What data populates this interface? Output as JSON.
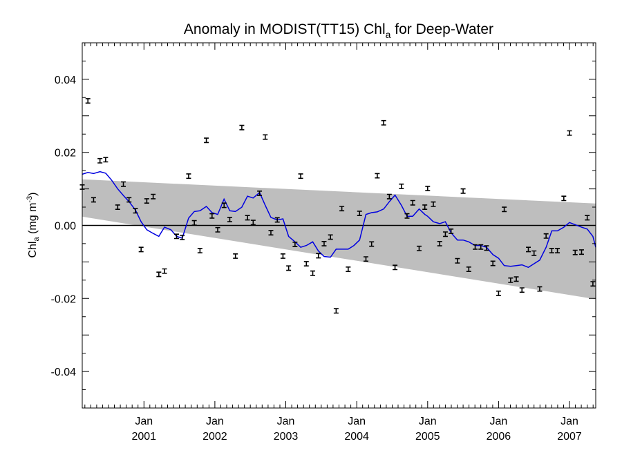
{
  "chart_data": {
    "type": "scatter",
    "title": {
      "main": "Anomaly in MODIST(TT15) Chl",
      "sub": "a",
      "tail": " for Deep-Water"
    },
    "ylabel": {
      "main": "Chl",
      "sub": "a",
      "mid": " (mg m",
      "sup": "-3",
      "tail": ")"
    },
    "ylim": [
      -0.05,
      0.05
    ],
    "xlim": [
      2000.13,
      2007.37
    ],
    "yticks": [
      {
        "value": 0.04,
        "label": "0.04"
      },
      {
        "value": 0.02,
        "label": "0.02"
      },
      {
        "value": 0.0,
        "label": "0.00"
      },
      {
        "value": -0.02,
        "label": "-0.02"
      },
      {
        "value": -0.04,
        "label": "-0.04"
      }
    ],
    "xticks": [
      {
        "value": 2001.0,
        "month": "Jan",
        "year": "2001"
      },
      {
        "value": 2002.0,
        "month": "Jan",
        "year": "2002"
      },
      {
        "value": 2003.0,
        "month": "Jan",
        "year": "2003"
      },
      {
        "value": 2004.0,
        "month": "Jan",
        "year": "2004"
      },
      {
        "value": 2005.0,
        "month": "Jan",
        "year": "2005"
      },
      {
        "value": 2006.0,
        "month": "Jan",
        "year": "2006"
      },
      {
        "value": 2007.0,
        "month": "Jan",
        "year": "2007"
      }
    ],
    "confidence_band": {
      "color": "#bebebe",
      "upper": [
        [
          2000.13,
          0.0126
        ],
        [
          2007.37,
          0.006
        ]
      ],
      "lower": [
        [
          2000.13,
          0.0024
        ],
        [
          2007.37,
          -0.0202
        ]
      ]
    },
    "zero_line": 0.0,
    "series": [
      {
        "kind": "points_with_errorbars",
        "color": "#000000",
        "error": 0.0006,
        "points": [
          [
            2000.13,
            0.0105
          ],
          [
            2000.21,
            0.0341
          ],
          [
            2000.29,
            0.007
          ],
          [
            2000.38,
            0.0177
          ],
          [
            2000.46,
            0.018
          ],
          [
            2000.63,
            0.005
          ],
          [
            2000.71,
            0.0113
          ],
          [
            2000.79,
            0.007
          ],
          [
            2000.88,
            0.004
          ],
          [
            2000.96,
            -0.0066
          ],
          [
            2001.04,
            0.0067
          ],
          [
            2001.13,
            0.0079
          ],
          [
            2001.21,
            -0.0134
          ],
          [
            2001.29,
            -0.0125
          ],
          [
            2001.46,
            -0.003
          ],
          [
            2001.54,
            -0.0033
          ],
          [
            2001.63,
            0.0135
          ],
          [
            2001.71,
            0.0007
          ],
          [
            2001.79,
            -0.0069
          ],
          [
            2001.88,
            0.0233
          ],
          [
            2001.96,
            0.0026
          ],
          [
            2002.04,
            -0.0012
          ],
          [
            2002.13,
            0.0055
          ],
          [
            2002.21,
            0.0016
          ],
          [
            2002.29,
            -0.0084
          ],
          [
            2002.38,
            0.0268
          ],
          [
            2002.46,
            0.0021
          ],
          [
            2002.54,
            0.0008
          ],
          [
            2002.63,
            0.0088
          ],
          [
            2002.71,
            0.0242
          ],
          [
            2002.79,
            -0.002
          ],
          [
            2002.88,
            0.0015
          ],
          [
            2002.96,
            -0.0084
          ],
          [
            2003.04,
            -0.0117
          ],
          [
            2003.13,
            -0.0052
          ],
          [
            2003.21,
            0.0135
          ],
          [
            2003.29,
            -0.0105
          ],
          [
            2003.38,
            -0.0131
          ],
          [
            2003.46,
            -0.0083
          ],
          [
            2003.54,
            -0.005
          ],
          [
            2003.63,
            -0.0032
          ],
          [
            2003.71,
            -0.0234
          ],
          [
            2003.79,
            0.0046
          ],
          [
            2003.88,
            -0.012
          ],
          [
            2004.04,
            0.0033
          ],
          [
            2004.13,
            -0.0092
          ],
          [
            2004.21,
            -0.0051
          ],
          [
            2004.29,
            0.0136
          ],
          [
            2004.38,
            0.0281
          ],
          [
            2004.46,
            0.0079
          ],
          [
            2004.54,
            -0.0115
          ],
          [
            2004.63,
            0.0107
          ],
          [
            2004.71,
            0.0026
          ],
          [
            2004.79,
            0.0062
          ],
          [
            2004.88,
            -0.0063
          ],
          [
            2004.96,
            0.005
          ],
          [
            2005.0,
            0.0101
          ],
          [
            2005.08,
            0.0058
          ],
          [
            2005.17,
            -0.005
          ],
          [
            2005.25,
            -0.0024
          ],
          [
            2005.33,
            -0.0016
          ],
          [
            2005.42,
            -0.0097
          ],
          [
            2005.5,
            0.0094
          ],
          [
            2005.58,
            -0.012
          ],
          [
            2005.67,
            -0.0059
          ],
          [
            2005.75,
            -0.0059
          ],
          [
            2005.83,
            -0.0062
          ],
          [
            2005.92,
            -0.0104
          ],
          [
            2006.0,
            -0.0186
          ],
          [
            2006.08,
            0.0044
          ],
          [
            2006.17,
            -0.015
          ],
          [
            2006.25,
            -0.0147
          ],
          [
            2006.33,
            -0.0177
          ],
          [
            2006.42,
            -0.0066
          ],
          [
            2006.5,
            -0.0076
          ],
          [
            2006.58,
            -0.0174
          ],
          [
            2006.67,
            -0.0029
          ],
          [
            2006.75,
            -0.0069
          ],
          [
            2006.83,
            -0.0069
          ],
          [
            2006.92,
            0.0074
          ],
          [
            2007.0,
            0.0253
          ],
          [
            2007.08,
            -0.0074
          ],
          [
            2007.17,
            -0.0073
          ],
          [
            2007.25,
            0.0021
          ],
          [
            2007.33,
            -0.016
          ]
        ]
      },
      {
        "kind": "line",
        "color": "#0000e0",
        "points": [
          [
            2000.13,
            0.014
          ],
          [
            2000.21,
            0.0145
          ],
          [
            2000.29,
            0.0142
          ],
          [
            2000.38,
            0.0147
          ],
          [
            2000.46,
            0.0143
          ],
          [
            2000.54,
            0.0125
          ],
          [
            2000.63,
            0.01
          ],
          [
            2000.71,
            0.0082
          ],
          [
            2000.79,
            0.0065
          ],
          [
            2000.88,
            0.0042
          ],
          [
            2000.96,
            0.001
          ],
          [
            2001.04,
            -0.0012
          ],
          [
            2001.13,
            -0.0022
          ],
          [
            2001.21,
            -0.003
          ],
          [
            2001.29,
            -0.0005
          ],
          [
            2001.38,
            -0.0012
          ],
          [
            2001.46,
            -0.003
          ],
          [
            2001.54,
            -0.0035
          ],
          [
            2001.63,
            0.002
          ],
          [
            2001.71,
            0.0038
          ],
          [
            2001.79,
            0.004
          ],
          [
            2001.88,
            0.0052
          ],
          [
            2001.96,
            0.0035
          ],
          [
            2002.04,
            0.003
          ],
          [
            2002.13,
            0.0072
          ],
          [
            2002.21,
            0.004
          ],
          [
            2002.29,
            0.0038
          ],
          [
            2002.38,
            0.005
          ],
          [
            2002.46,
            0.008
          ],
          [
            2002.54,
            0.0075
          ],
          [
            2002.63,
            0.009
          ],
          [
            2002.71,
            0.0055
          ],
          [
            2002.79,
            0.0022
          ],
          [
            2002.88,
            0.0015
          ],
          [
            2002.96,
            0.0018
          ],
          [
            2003.04,
            -0.003
          ],
          [
            2003.13,
            -0.0045
          ],
          [
            2003.21,
            -0.006
          ],
          [
            2003.29,
            -0.0055
          ],
          [
            2003.38,
            -0.0045
          ],
          [
            2003.46,
            -0.007
          ],
          [
            2003.54,
            -0.0085
          ],
          [
            2003.63,
            -0.0087
          ],
          [
            2003.71,
            -0.0065
          ],
          [
            2003.79,
            -0.0065
          ],
          [
            2003.88,
            -0.0065
          ],
          [
            2003.96,
            -0.0055
          ],
          [
            2004.04,
            -0.004
          ],
          [
            2004.13,
            0.003
          ],
          [
            2004.21,
            0.0035
          ],
          [
            2004.29,
            0.0037
          ],
          [
            2004.38,
            0.0045
          ],
          [
            2004.46,
            0.0065
          ],
          [
            2004.54,
            0.0083
          ],
          [
            2004.63,
            0.0055
          ],
          [
            2004.71,
            0.0025
          ],
          [
            2004.79,
            0.0025
          ],
          [
            2004.88,
            0.0045
          ],
          [
            2004.96,
            0.003
          ],
          [
            2005.0,
            0.0025
          ],
          [
            2005.08,
            0.001
          ],
          [
            2005.17,
            0.0005
          ],
          [
            2005.25,
            0.001
          ],
          [
            2005.33,
            -0.002
          ],
          [
            2005.42,
            -0.004
          ],
          [
            2005.5,
            -0.004
          ],
          [
            2005.58,
            -0.0045
          ],
          [
            2005.67,
            -0.0055
          ],
          [
            2005.75,
            -0.0055
          ],
          [
            2005.83,
            -0.006
          ],
          [
            2005.92,
            -0.008
          ],
          [
            2006.0,
            -0.009
          ],
          [
            2006.08,
            -0.011
          ],
          [
            2006.17,
            -0.0112
          ],
          [
            2006.25,
            -0.011
          ],
          [
            2006.33,
            -0.0108
          ],
          [
            2006.42,
            -0.0115
          ],
          [
            2006.5,
            -0.0105
          ],
          [
            2006.58,
            -0.0095
          ],
          [
            2006.67,
            -0.006
          ],
          [
            2006.75,
            -0.0015
          ],
          [
            2006.83,
            -0.0015
          ],
          [
            2006.92,
            -0.0005
          ],
          [
            2007.0,
            0.0008
          ],
          [
            2007.08,
            0.0002
          ],
          [
            2007.17,
            -0.0005
          ],
          [
            2007.25,
            -0.001
          ],
          [
            2007.33,
            -0.003
          ],
          [
            2007.37,
            -0.006
          ]
        ]
      }
    ]
  }
}
